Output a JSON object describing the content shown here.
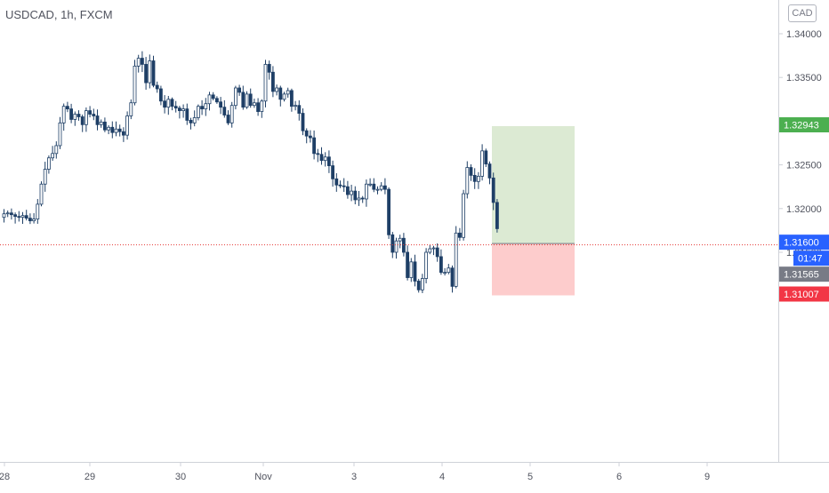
{
  "symbol_title": "USDCAD, 1h, FXCM",
  "currency_badge": "CAD",
  "colors": {
    "candle_up": "#1e3f66",
    "candle_down": "#1e3f66",
    "current_price_line": "#e53935",
    "target_zone": "#dcead3",
    "stop_zone": "#fdcccc",
    "target_label_bg": "#4caf50",
    "current_label_bg": "#2962ff",
    "price_label_bg": "#787b86",
    "stop_label_bg": "#f23645"
  },
  "chart_data": {
    "type": "candlestick",
    "y_axis": {
      "ticks": [
        "1.34000",
        "1.33500",
        "1.33000",
        "1.32500",
        "1.32000",
        "1.31500"
      ],
      "tick_values": [
        1.34,
        1.335,
        1.33,
        1.325,
        1.32,
        1.315
      ],
      "range": [
        1.3089,
        1.3414
      ]
    },
    "x_axis": {
      "ticks": [
        "28",
        "29",
        "30",
        "Nov",
        "3",
        "4",
        "5",
        "6",
        "9"
      ]
    },
    "candle_count": 133,
    "closes": [
      1.3194,
      1.3195,
      1.3193,
      1.3191,
      1.319,
      1.3192,
      1.3189,
      1.3186,
      1.3188,
      1.3205,
      1.3228,
      1.3245,
      1.3258,
      1.3263,
      1.3272,
      1.3298,
      1.3317,
      1.3314,
      1.3302,
      1.3308,
      1.3305,
      1.3296,
      1.3312,
      1.3308,
      1.3306,
      1.3296,
      1.3299,
      1.329,
      1.3293,
      1.3287,
      1.3291,
      1.3288,
      1.3284,
      1.3306,
      1.3321,
      1.3363,
      1.3372,
      1.3365,
      1.3344,
      1.3369,
      1.3341,
      1.3337,
      1.3323,
      1.3316,
      1.3325,
      1.3317,
      1.3315,
      1.3312,
      1.3314,
      1.3301,
      1.3298,
      1.3304,
      1.3317,
      1.3314,
      1.332,
      1.333,
      1.3326,
      1.3322,
      1.3316,
      1.3307,
      1.3298,
      1.3318,
      1.3338,
      1.3333,
      1.3316,
      1.3331,
      1.3318,
      1.3321,
      1.3311,
      1.3323,
      1.3365,
      1.3356,
      1.3334,
      1.3338,
      1.3325,
      1.3331,
      1.3335,
      1.3317,
      1.3318,
      1.3309,
      1.3289,
      1.3283,
      1.3281,
      1.3263,
      1.3262,
      1.3255,
      1.3259,
      1.3249,
      1.3234,
      1.3227,
      1.3226,
      1.3225,
      1.3216,
      1.322,
      1.321,
      1.3212,
      1.3211,
      1.3228,
      1.3228,
      1.3222,
      1.3222,
      1.3226,
      1.3222,
      1.317,
      1.315,
      1.3163,
      1.3166,
      1.315,
      1.3121,
      1.3139,
      1.3117,
      1.3107,
      1.312,
      1.315,
      1.3154,
      1.3155,
      1.3145,
      1.3127,
      1.3127,
      1.3132,
      1.3111,
      1.3172,
      1.3167,
      1.3217,
      1.3247,
      1.3238,
      1.3231,
      1.3237,
      1.3266,
      1.3251,
      1.3235,
      1.3207,
      1.3177
    ],
    "current_price": 1.31565,
    "position": {
      "type": "long",
      "entry": 1.316,
      "target": 1.32943,
      "stop": 1.31007
    },
    "price_labels": [
      {
        "text": "1.32943",
        "kind": "target"
      },
      {
        "text": "1.31600",
        "kind": "entry"
      },
      {
        "text": "01:47",
        "kind": "countdown"
      },
      {
        "text": "1.31565",
        "kind": "current"
      },
      {
        "text": "1.31007",
        "kind": "stop"
      }
    ],
    "grid": false
  }
}
